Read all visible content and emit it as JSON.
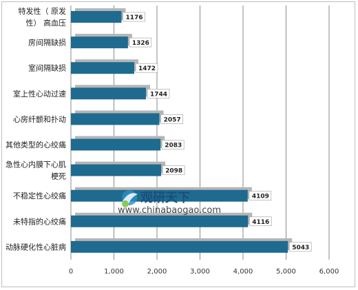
{
  "colors": {
    "bar": "#1e6b8f",
    "bar_shadow": "#b5b5b5",
    "label_box_border": "#9a9a9a",
    "grid": "#8a8a8a",
    "logo_accent": "#2a8fc7"
  },
  "watermark": {
    "cn": "观研天下",
    "en": "www.chinabaogao.com"
  },
  "chart_data": {
    "type": "bar",
    "orientation": "horizontal",
    "title": "",
    "xlabel": "",
    "ylabel": "",
    "xlim": [
      0,
      6000
    ],
    "x_ticks": [
      0,
      1000,
      2000,
      3000,
      4000,
      5000,
      6000
    ],
    "x_tick_labels": [
      "0",
      "1,000",
      "2,000",
      "3,000",
      "4,000",
      "5,000",
      "6,000"
    ],
    "grid": "vertical",
    "categories": [
      [
        "特发性（ 原发",
        "性） 高血压"
      ],
      [
        "房间隔缺损"
      ],
      [
        "室间隔缺损"
      ],
      [
        "室上性心动过速"
      ],
      [
        "心房纤颤和扑动"
      ],
      [
        "其他类型的心绞痛"
      ],
      [
        "急性心内膜下心肌",
        "梗死"
      ],
      [
        "不稳定性心绞痛"
      ],
      [
        "未特指的心绞痛"
      ],
      [
        "动脉硬化性心脏病"
      ]
    ],
    "values": [
      1176,
      1326,
      1472,
      1744,
      2057,
      2083,
      2098,
      4109,
      4116,
      5043
    ],
    "value_labels": [
      "1176",
      "1326",
      "1472",
      "1744",
      "2057",
      "2083",
      "2098",
      "4109",
      "4116",
      "5043"
    ]
  }
}
